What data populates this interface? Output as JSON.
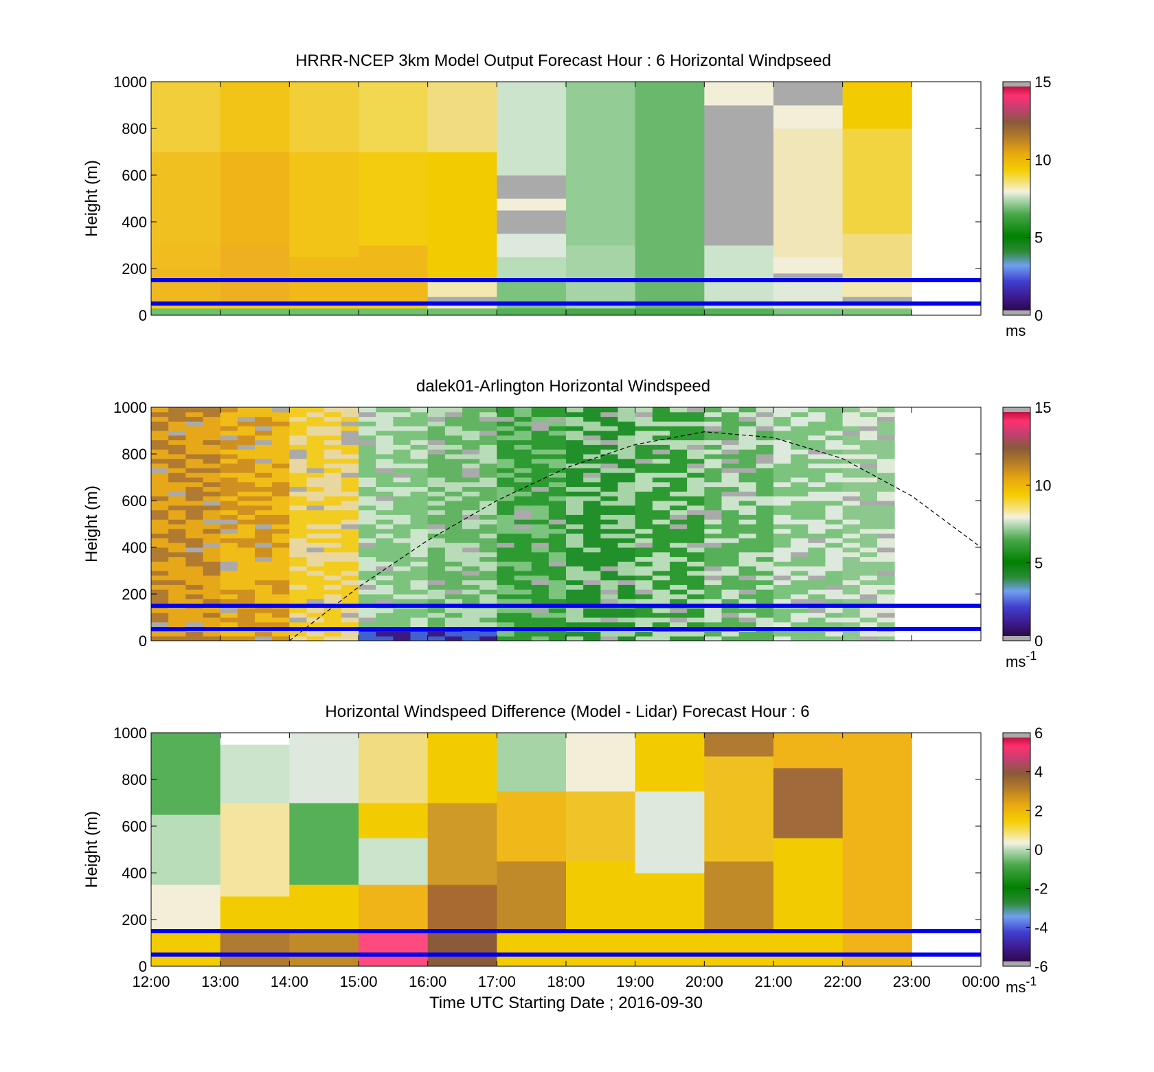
{
  "figure": {
    "background": "#ffffff"
  },
  "colormaps": {
    "speed": {
      "stops": [
        [
          0,
          "#2e0a4a"
        ],
        [
          0.06,
          "#3d1a90"
        ],
        [
          0.13,
          "#4040d0"
        ],
        [
          0.2,
          "#70a0f0"
        ],
        [
          0.26,
          "#2e8b3a"
        ],
        [
          0.33,
          "#008000"
        ],
        [
          0.43,
          "#49a84a"
        ],
        [
          0.5,
          "#b9dcb9"
        ],
        [
          0.53,
          "#f5f1e0"
        ],
        [
          0.57,
          "#f5e27a"
        ],
        [
          0.63,
          "#f5cc00"
        ],
        [
          0.7,
          "#e8a810"
        ],
        [
          0.78,
          "#b0782a"
        ],
        [
          0.84,
          "#8a5a3a"
        ],
        [
          0.9,
          "#c04070"
        ],
        [
          0.96,
          "#ff3070"
        ],
        [
          1,
          "#c01040"
        ]
      ]
    },
    "gray": "#aaaaaa",
    "missing": "#ffffff"
  },
  "chart_data": [
    {
      "type": "heatmap",
      "title": "HRRR-NCEP 3km Model Output   Forecast Hour : 6 Horizontal Windpseed",
      "ylabel": "Height (m)",
      "xlabel": "",
      "ylim": [
        0,
        1000
      ],
      "yticks": [
        0,
        200,
        400,
        600,
        800,
        1000
      ],
      "x_range_hours": [
        12,
        24
      ],
      "cell_hours": 1,
      "colorbar": {
        "range": [
          0,
          15
        ],
        "ticks": [
          "0",
          "5",
          "10",
          "15"
        ],
        "unit": "ms"
      },
      "columns": [
        {
          "start": "12:00",
          "levels": [
            [
              0,
              30,
              "#6fc070"
            ],
            [
              30,
              60,
              "#f5cc00"
            ],
            [
              60,
              200,
              "#f0b820"
            ],
            [
              200,
              300,
              "#f0bc20"
            ],
            [
              300,
              700,
              "#f0c020"
            ],
            [
              700,
              1000,
              "#f2cf3a"
            ]
          ]
        },
        {
          "start": "13:00",
          "levels": [
            [
              0,
              30,
              "#6fc070"
            ],
            [
              30,
              60,
              "#f5cc00"
            ],
            [
              60,
              300,
              "#eeb020"
            ],
            [
              300,
              700,
              "#f0b418"
            ],
            [
              700,
              1000,
              "#f2c418"
            ]
          ]
        },
        {
          "start": "14:00",
          "levels": [
            [
              0,
              30,
              "#6fc070"
            ],
            [
              30,
              60,
              "#f5cc00"
            ],
            [
              60,
              250,
              "#f0b818"
            ],
            [
              250,
              700,
              "#f2c418"
            ],
            [
              700,
              1000,
              "#f2cf38"
            ]
          ]
        },
        {
          "start": "15:00",
          "levels": [
            [
              0,
              30,
              "#6fc070"
            ],
            [
              30,
              60,
              "#f5cc00"
            ],
            [
              60,
              300,
              "#f0b818"
            ],
            [
              300,
              700,
              "#f3cc10"
            ],
            [
              700,
              1000,
              "#f2d750"
            ]
          ]
        },
        {
          "start": "16:00",
          "levels": [
            [
              0,
              30,
              "#6fc070"
            ],
            [
              30,
              60,
              "#f3e9b0"
            ],
            [
              60,
              80,
              "#aaaaaa"
            ],
            [
              80,
              150,
              "#f3e9b0"
            ],
            [
              150,
              700,
              "#f3cc00"
            ],
            [
              700,
              1000,
              "#f2dc80"
            ]
          ]
        },
        {
          "start": "17:00",
          "levels": [
            [
              0,
              30,
              "#55b058"
            ],
            [
              30,
              150,
              "#7cc47e"
            ],
            [
              150,
              250,
              "#b9dcb9"
            ],
            [
              250,
              350,
              "#dce9dc"
            ],
            [
              350,
              450,
              "#aaaaaa"
            ],
            [
              450,
              500,
              "#f3eed8"
            ],
            [
              500,
              600,
              "#aaaaaa"
            ],
            [
              600,
              1000,
              "#cce3cc"
            ]
          ]
        },
        {
          "start": "18:00",
          "levels": [
            [
              0,
              30,
              "#49a84a"
            ],
            [
              30,
              300,
              "#a6d4a6"
            ],
            [
              300,
              1000,
              "#94cc95"
            ]
          ]
        },
        {
          "start": "19:00",
          "levels": [
            [
              0,
              30,
              "#49a84a"
            ],
            [
              30,
              1000,
              "#6ab86c"
            ]
          ]
        },
        {
          "start": "20:00",
          "levels": [
            [
              0,
              30,
              "#55b058"
            ],
            [
              30,
              300,
              "#cce3cc"
            ],
            [
              300,
              900,
              "#aaaaaa"
            ],
            [
              900,
              1000,
              "#f3eed8"
            ]
          ]
        },
        {
          "start": "21:00",
          "levels": [
            [
              0,
              30,
              "#7cc47e"
            ],
            [
              30,
              160,
              "#e0ead8"
            ],
            [
              160,
              180,
              "#aaaaaa"
            ],
            [
              180,
              250,
              "#f3eed8"
            ],
            [
              250,
              800,
              "#f1e6b8"
            ],
            [
              800,
              900,
              "#f3eed8"
            ],
            [
              900,
              1000,
              "#aaaaaa"
            ]
          ]
        },
        {
          "start": "22:00",
          "levels": [
            [
              0,
              30,
              "#7cc47e"
            ],
            [
              30,
              60,
              "#f3e9b0"
            ],
            [
              60,
              80,
              "#aaaaaa"
            ],
            [
              80,
              150,
              "#f3e9b0"
            ],
            [
              150,
              350,
              "#f2dc80"
            ],
            [
              350,
              800,
              "#f2d440"
            ],
            [
              800,
              1000,
              "#f3cc00"
            ]
          ]
        }
      ],
      "hlines_m": [
        50,
        150
      ]
    },
    {
      "type": "heatmap",
      "title": "dalek01-Arlington  Horizontal Windspeed",
      "ylabel": "Height (m)",
      "xlabel": "",
      "ylim": [
        0,
        1000
      ],
      "yticks": [
        0,
        200,
        400,
        600,
        800,
        1000
      ],
      "x_range_hours": [
        12,
        24
      ],
      "cell_hours": 0.25,
      "colorbar": {
        "range": [
          0,
          15
        ],
        "ticks": [
          "0",
          "5",
          "10",
          "15"
        ],
        "unit": "ms",
        "unit_sup": "-1"
      },
      "columns_sequence": [
        {
          "count": 4,
          "base": "#e6a818",
          "alt": "#b07a30"
        },
        {
          "count": 4,
          "base": "#f0bc18",
          "alt": "#d09020"
        },
        {
          "count": 4,
          "base": "#f3cc20",
          "alt": "#e8d8a0"
        },
        {
          "count": 4,
          "base": "#7cc47e",
          "alt": "#cde5cd"
        },
        {
          "count": 4,
          "base": "#62b463",
          "alt": "#b8dcb8"
        },
        {
          "count": 4,
          "base": "#2e9a32",
          "alt": "#7cc47e"
        },
        {
          "count": 4,
          "base": "#22902a",
          "alt": "#a6d4a6"
        },
        {
          "count": 4,
          "base": "#2e9a32",
          "alt": "#b9dcb9"
        },
        {
          "count": 4,
          "base": "#55b058",
          "alt": "#cce3cc"
        },
        {
          "count": 4,
          "base": "#7cc47e",
          "alt": "#dce9dc"
        },
        {
          "count": 3,
          "base": "#8cc88e",
          "alt": "#e0ead8"
        }
      ],
      "data_end_hour": 22.9,
      "sun_curve": {
        "type": "dashed",
        "points_hour_m": [
          [
            14.0,
            0
          ],
          [
            15.0,
            230
          ],
          [
            16.0,
            430
          ],
          [
            17.0,
            600
          ],
          [
            18.0,
            740
          ],
          [
            19.0,
            840
          ],
          [
            20.0,
            895
          ],
          [
            21.0,
            870
          ],
          [
            22.0,
            780
          ],
          [
            23.0,
            620
          ],
          [
            24.0,
            400
          ]
        ]
      },
      "hlines_m": [
        50,
        150
      ]
    },
    {
      "type": "heatmap",
      "title": "Horizontal Windspeed Difference (Model - Lidar) Forecast Hour : 6",
      "ylabel": "Height (m)",
      "xlabel": "Time UTC  Starting Date ; 2016-09-30",
      "ylim": [
        0,
        1000
      ],
      "yticks": [
        0,
        200,
        400,
        600,
        800,
        1000
      ],
      "x_range_hours": [
        12,
        24
      ],
      "xticks": [
        "12:00",
        "13:00",
        "14:00",
        "15:00",
        "16:00",
        "17:00",
        "18:00",
        "19:00",
        "20:00",
        "21:00",
        "22:00",
        "23:00",
        "00:00"
      ],
      "cell_hours": 1,
      "colorbar": {
        "range": [
          -6,
          6
        ],
        "ticks": [
          "-6",
          "-4",
          "-2",
          "0",
          "2",
          "4",
          "6"
        ],
        "unit": "ms",
        "unit_sup": "-1"
      },
      "columns": [
        {
          "start": "12:00",
          "levels": [
            [
              0,
              160,
              "#f3cc00"
            ],
            [
              160,
              350,
              "#f3eed8"
            ],
            [
              350,
              650,
              "#b9dcb9"
            ],
            [
              650,
              1000,
              "#55b058"
            ]
          ]
        },
        {
          "start": "13:00",
          "levels": [
            [
              0,
              160,
              "#b07a30"
            ],
            [
              160,
              300,
              "#f3cc00"
            ],
            [
              300,
              700,
              "#f3e4a0"
            ],
            [
              700,
              950,
              "#cce3cc"
            ],
            [
              950,
              1000,
              "#ffffff"
            ]
          ]
        },
        {
          "start": "14:00",
          "levels": [
            [
              0,
              160,
              "#c08a28"
            ],
            [
              160,
              350,
              "#f3cc00"
            ],
            [
              350,
              700,
              "#55b058"
            ],
            [
              700,
              1000,
              "#dce9dc"
            ]
          ]
        },
        {
          "start": "15:00",
          "levels": [
            [
              0,
              160,
              "#ff4a80"
            ],
            [
              160,
              350,
              "#f0b418"
            ],
            [
              350,
              550,
              "#cce3cc"
            ],
            [
              550,
              700,
              "#f3cc00"
            ],
            [
              700,
              1000,
              "#f2dc80"
            ]
          ]
        },
        {
          "start": "16:00",
          "levels": [
            [
              0,
              160,
              "#8a5a3a"
            ],
            [
              160,
              350,
              "#a86a30"
            ],
            [
              350,
              700,
              "#d09a28"
            ],
            [
              700,
              1000,
              "#f3cc00"
            ]
          ]
        },
        {
          "start": "17:00",
          "levels": [
            [
              0,
              160,
              "#f3cc00"
            ],
            [
              160,
              450,
              "#c08a28"
            ],
            [
              450,
              750,
              "#f0b818"
            ],
            [
              750,
              1000,
              "#a6d4a6"
            ]
          ]
        },
        {
          "start": "18:00",
          "levels": [
            [
              0,
              160,
              "#f3cc00"
            ],
            [
              160,
              450,
              "#f3cc00"
            ],
            [
              450,
              750,
              "#f0c428"
            ],
            [
              750,
              1000,
              "#f3eed8"
            ]
          ]
        },
        {
          "start": "19:00",
          "levels": [
            [
              0,
              160,
              "#f3cc00"
            ],
            [
              160,
              400,
              "#f3cc00"
            ],
            [
              400,
              750,
              "#dce9dc"
            ],
            [
              750,
              1000,
              "#f3cc00"
            ]
          ]
        },
        {
          "start": "20:00",
          "levels": [
            [
              0,
              160,
              "#f3cc00"
            ],
            [
              160,
              450,
              "#c08a28"
            ],
            [
              450,
              900,
              "#f0c020"
            ],
            [
              900,
              1000,
              "#b07a30"
            ]
          ]
        },
        {
          "start": "21:00",
          "levels": [
            [
              0,
              160,
              "#f3cc00"
            ],
            [
              160,
              550,
              "#f3cc00"
            ],
            [
              550,
              850,
              "#a06a3a"
            ],
            [
              850,
              1000,
              "#f0b418"
            ]
          ]
        },
        {
          "start": "22:00",
          "levels": [
            [
              0,
              160,
              "#f0b418"
            ],
            [
              160,
              1000,
              "#f0b418"
            ]
          ]
        }
      ],
      "hlines_m": [
        50,
        150
      ]
    }
  ]
}
